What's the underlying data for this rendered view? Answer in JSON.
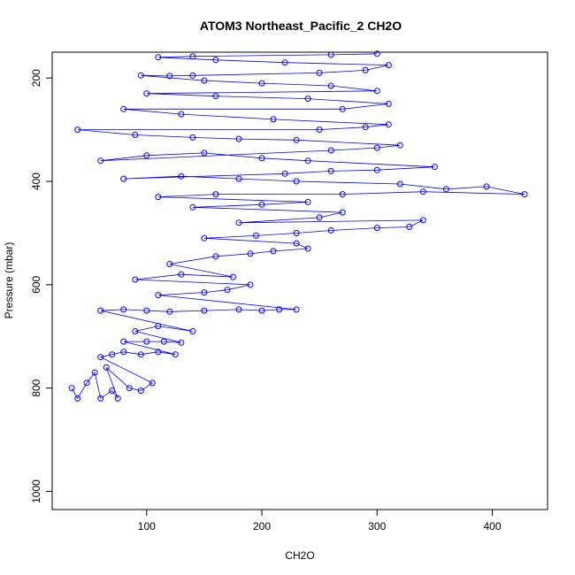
{
  "chart_data": {
    "type": "scatter",
    "title": "ATOM3 Northeast_Pacific_2 CH2O",
    "xlabel": "CH2O",
    "ylabel": "Pressure (mbar)",
    "xlim": [
      18,
      448
    ],
    "ylim": [
      1035,
      150
    ],
    "y_reversed": true,
    "x_ticks": [
      100,
      200,
      300,
      400
    ],
    "y_ticks": [
      200,
      400,
      600,
      800,
      1000
    ],
    "grid": false,
    "legend": "none",
    "series_color": "#0000ff",
    "marker": "open-circle",
    "connected": true,
    "sample_points": [
      {
        "x": 35,
        "y": 800
      },
      {
        "x": 40,
        "y": 820
      },
      {
        "x": 48,
        "y": 790
      },
      {
        "x": 55,
        "y": 770
      },
      {
        "x": 60,
        "y": 820
      },
      {
        "x": 70,
        "y": 805
      },
      {
        "x": 75,
        "y": 820
      },
      {
        "x": 65,
        "y": 760
      },
      {
        "x": 85,
        "y": 800
      },
      {
        "x": 95,
        "y": 805
      },
      {
        "x": 105,
        "y": 790
      },
      {
        "x": 60,
        "y": 740
      },
      {
        "x": 70,
        "y": 735
      },
      {
        "x": 80,
        "y": 730
      },
      {
        "x": 95,
        "y": 735
      },
      {
        "x": 110,
        "y": 730
      },
      {
        "x": 125,
        "y": 735
      },
      {
        "x": 80,
        "y": 710
      },
      {
        "x": 100,
        "y": 710
      },
      {
        "x": 115,
        "y": 710
      },
      {
        "x": 130,
        "y": 712
      },
      {
        "x": 90,
        "y": 690
      },
      {
        "x": 110,
        "y": 680
      },
      {
        "x": 140,
        "y": 690
      },
      {
        "x": 60,
        "y": 650
      },
      {
        "x": 80,
        "y": 648
      },
      {
        "x": 100,
        "y": 650
      },
      {
        "x": 120,
        "y": 652
      },
      {
        "x": 150,
        "y": 650
      },
      {
        "x": 180,
        "y": 648
      },
      {
        "x": 200,
        "y": 650
      },
      {
        "x": 215,
        "y": 648
      },
      {
        "x": 230,
        "y": 648
      },
      {
        "x": 110,
        "y": 620
      },
      {
        "x": 150,
        "y": 615
      },
      {
        "x": 170,
        "y": 610
      },
      {
        "x": 190,
        "y": 600
      },
      {
        "x": 90,
        "y": 590
      },
      {
        "x": 130,
        "y": 580
      },
      {
        "x": 175,
        "y": 585
      },
      {
        "x": 120,
        "y": 560
      },
      {
        "x": 160,
        "y": 545
      },
      {
        "x": 190,
        "y": 540
      },
      {
        "x": 210,
        "y": 535
      },
      {
        "x": 240,
        "y": 530
      },
      {
        "x": 230,
        "y": 520
      },
      {
        "x": 150,
        "y": 510
      },
      {
        "x": 195,
        "y": 505
      },
      {
        "x": 230,
        "y": 500
      },
      {
        "x": 260,
        "y": 495
      },
      {
        "x": 300,
        "y": 490
      },
      {
        "x": 328,
        "y": 488
      },
      {
        "x": 340,
        "y": 475
      },
      {
        "x": 180,
        "y": 480
      },
      {
        "x": 250,
        "y": 470
      },
      {
        "x": 270,
        "y": 460
      },
      {
        "x": 140,
        "y": 450
      },
      {
        "x": 200,
        "y": 445
      },
      {
        "x": 240,
        "y": 440
      },
      {
        "x": 110,
        "y": 430
      },
      {
        "x": 160,
        "y": 425
      },
      {
        "x": 270,
        "y": 425
      },
      {
        "x": 340,
        "y": 420
      },
      {
        "x": 428,
        "y": 425
      },
      {
        "x": 395,
        "y": 410
      },
      {
        "x": 360,
        "y": 415
      },
      {
        "x": 320,
        "y": 405
      },
      {
        "x": 230,
        "y": 400
      },
      {
        "x": 180,
        "y": 395
      },
      {
        "x": 130,
        "y": 390
      },
      {
        "x": 80,
        "y": 395
      },
      {
        "x": 220,
        "y": 385
      },
      {
        "x": 260,
        "y": 380
      },
      {
        "x": 300,
        "y": 378
      },
      {
        "x": 350,
        "y": 372
      },
      {
        "x": 240,
        "y": 360
      },
      {
        "x": 200,
        "y": 355
      },
      {
        "x": 150,
        "y": 345
      },
      {
        "x": 100,
        "y": 350
      },
      {
        "x": 60,
        "y": 360
      },
      {
        "x": 260,
        "y": 340
      },
      {
        "x": 300,
        "y": 335
      },
      {
        "x": 320,
        "y": 330
      },
      {
        "x": 230,
        "y": 320
      },
      {
        "x": 180,
        "y": 318
      },
      {
        "x": 140,
        "y": 315
      },
      {
        "x": 90,
        "y": 310
      },
      {
        "x": 40,
        "y": 300
      },
      {
        "x": 250,
        "y": 300
      },
      {
        "x": 290,
        "y": 295
      },
      {
        "x": 310,
        "y": 290
      },
      {
        "x": 210,
        "y": 280
      },
      {
        "x": 130,
        "y": 270
      },
      {
        "x": 80,
        "y": 260
      },
      {
        "x": 270,
        "y": 260
      },
      {
        "x": 310,
        "y": 250
      },
      {
        "x": 240,
        "y": 240
      },
      {
        "x": 160,
        "y": 235
      },
      {
        "x": 100,
        "y": 230
      },
      {
        "x": 300,
        "y": 225
      },
      {
        "x": 260,
        "y": 215
      },
      {
        "x": 200,
        "y": 210
      },
      {
        "x": 150,
        "y": 205
      },
      {
        "x": 95,
        "y": 195
      },
      {
        "x": 120,
        "y": 196
      },
      {
        "x": 140,
        "y": 195
      },
      {
        "x": 250,
        "y": 190
      },
      {
        "x": 290,
        "y": 185
      },
      {
        "x": 310,
        "y": 175
      },
      {
        "x": 220,
        "y": 170
      },
      {
        "x": 160,
        "y": 165
      },
      {
        "x": 110,
        "y": 160
      },
      {
        "x": 140,
        "y": 158
      },
      {
        "x": 260,
        "y": 155
      },
      {
        "x": 300,
        "y": 153
      }
    ]
  }
}
